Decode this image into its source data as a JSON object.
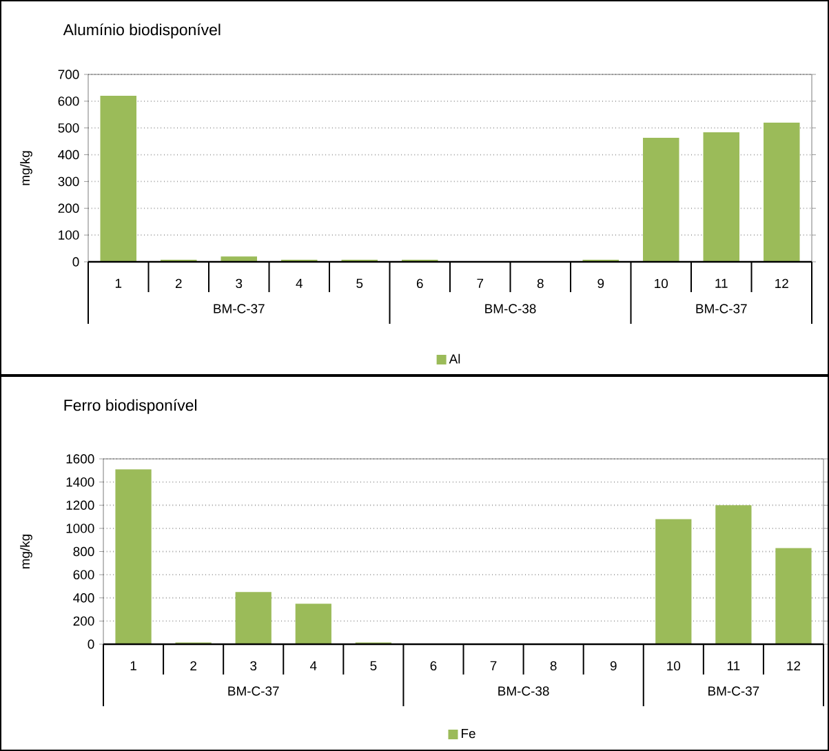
{
  "chart_data": [
    {
      "type": "bar",
      "title": "Alumínio biodisponível",
      "ylabel": "mg/kg",
      "categories": [
        "1",
        "2",
        "3",
        "4",
        "5",
        "6",
        "7",
        "8",
        "9",
        "10",
        "11",
        "12"
      ],
      "series": [
        {
          "name": "Al",
          "color": "#9bbb59",
          "values": [
            620,
            8,
            20,
            8,
            8,
            8,
            0,
            0,
            8,
            463,
            484,
            520
          ]
        }
      ],
      "ylim": [
        0,
        700
      ],
      "yticks": [
        0,
        100,
        200,
        300,
        400,
        500,
        600,
        700
      ],
      "grid": "y",
      "legend": "bottom",
      "annotations": [
        "BM-C-37",
        "BM-C-38",
        "BM-C-37"
      ]
    },
    {
      "type": "bar",
      "title": "Ferro biodisponível",
      "ylabel": "mg/kg",
      "categories": [
        "1",
        "2",
        "3",
        "4",
        "5",
        "6",
        "7",
        "8",
        "9",
        "10",
        "11",
        "12"
      ],
      "series": [
        {
          "name": "Fe",
          "color": "#9bbb59",
          "values": [
            1510,
            15,
            450,
            350,
            15,
            0,
            0,
            0,
            0,
            1080,
            1200,
            830
          ]
        }
      ],
      "ylim": [
        0,
        1600
      ],
      "yticks": [
        0,
        200,
        400,
        600,
        800,
        1000,
        1200,
        1400,
        1600
      ],
      "grid": "y",
      "legend": "bottom",
      "annotations": [
        "BM-C-37",
        "BM-C-38",
        "BM-C-37"
      ]
    }
  ]
}
